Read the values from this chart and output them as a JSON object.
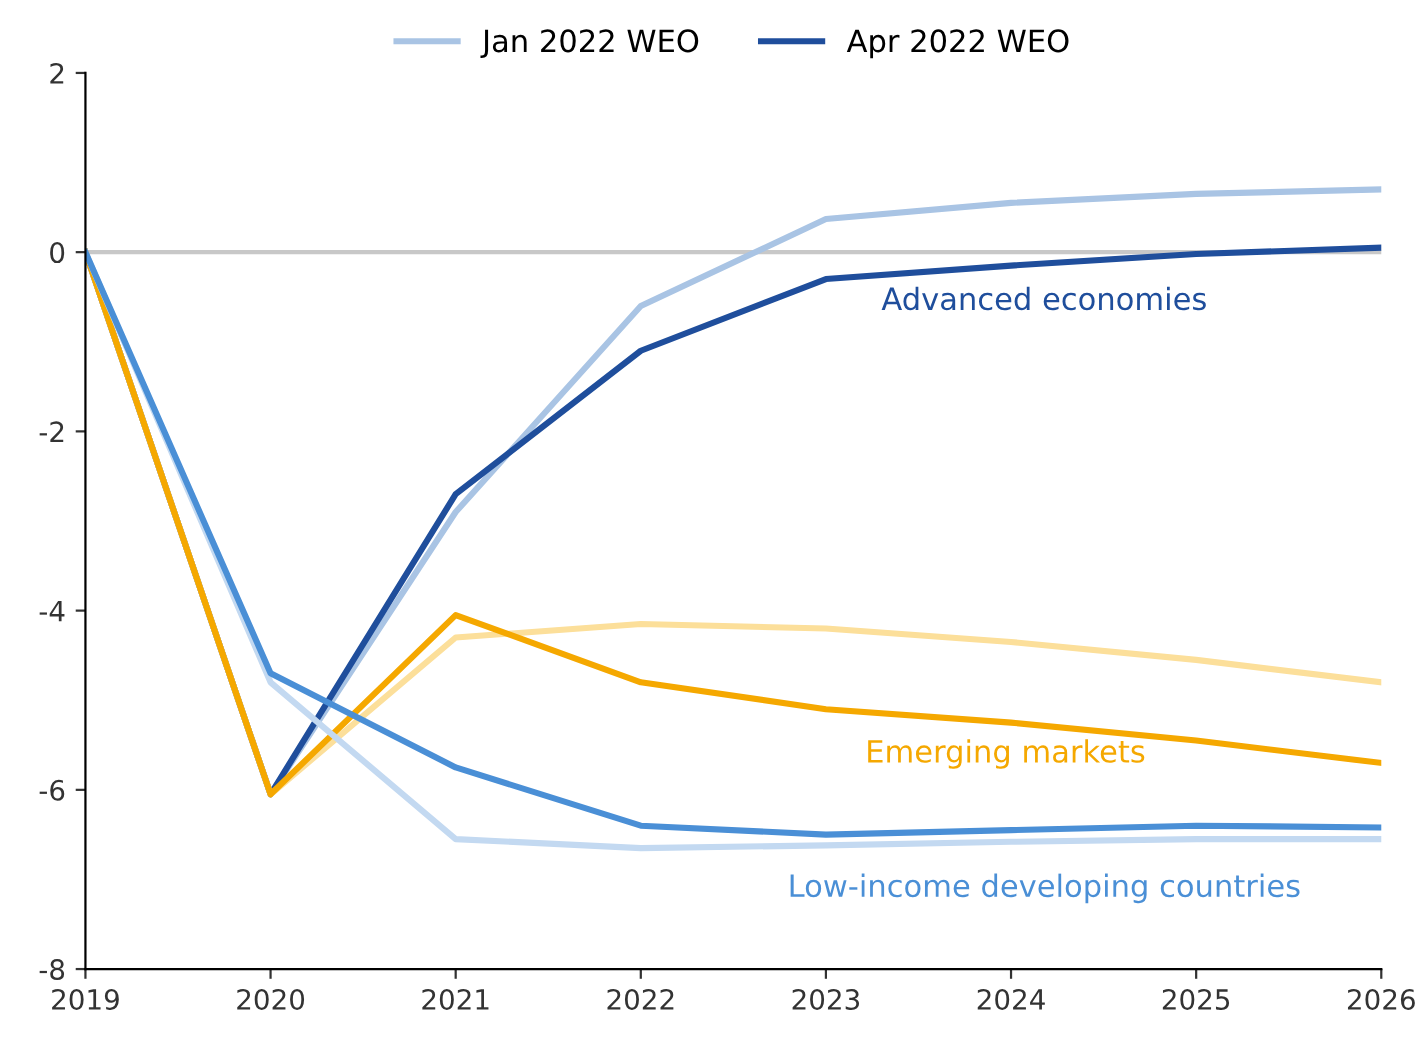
{
  "chart_data": {
    "type": "line",
    "x": [
      2019,
      2020,
      2021,
      2022,
      2023,
      2024,
      2025,
      2026
    ],
    "xlim": [
      2019,
      2026
    ],
    "xticks": [
      2019,
      2020,
      2021,
      2022,
      2023,
      2024,
      2025,
      2026
    ],
    "ylim": [
      -8,
      2
    ],
    "yticks": [
      -8,
      -6,
      -4,
      -2,
      0,
      2
    ],
    "grid": false,
    "legend": "top",
    "marker": "none",
    "line_style": "solid",
    "series": [
      {
        "name": "Jan 2022 WEO",
        "color": "#a9c4e4",
        "values": [
          0,
          -6.05,
          -2.9,
          -0.6,
          0.37,
          0.55,
          0.65,
          0.7
        ]
      },
      {
        "name": "Apr 2022 WEO",
        "color": "#1f4e9c",
        "values": [
          0,
          -6.05,
          -2.7,
          -1.1,
          -0.3,
          -0.15,
          -0.02,
          0.05
        ]
      },
      {
        "color": "#fcdf9a",
        "values": [
          0,
          -6.05,
          -4.3,
          -4.15,
          -4.2,
          -4.35,
          -4.55,
          -4.8
        ]
      },
      {
        "color": "#f5a800",
        "values": [
          0,
          -6.05,
          -4.05,
          -4.8,
          -5.1,
          -5.25,
          -5.45,
          -5.7
        ]
      },
      {
        "color": "#c3d9f1",
        "values": [
          0,
          -4.8,
          -6.55,
          -6.65,
          -6.62,
          -6.58,
          -6.55,
          -6.55
        ]
      },
      {
        "color": "#4a8fd6",
        "values": [
          0,
          -4.7,
          -5.75,
          -6.4,
          -6.5,
          -6.45,
          -6.4,
          -6.42
        ]
      }
    ],
    "ref_lines": [
      {
        "axis": "y",
        "value": 0,
        "color": "#c8c8c8"
      }
    ],
    "annotations": [
      "Advanced economies",
      "Emerging markets",
      "Low-income developing countries"
    ]
  }
}
